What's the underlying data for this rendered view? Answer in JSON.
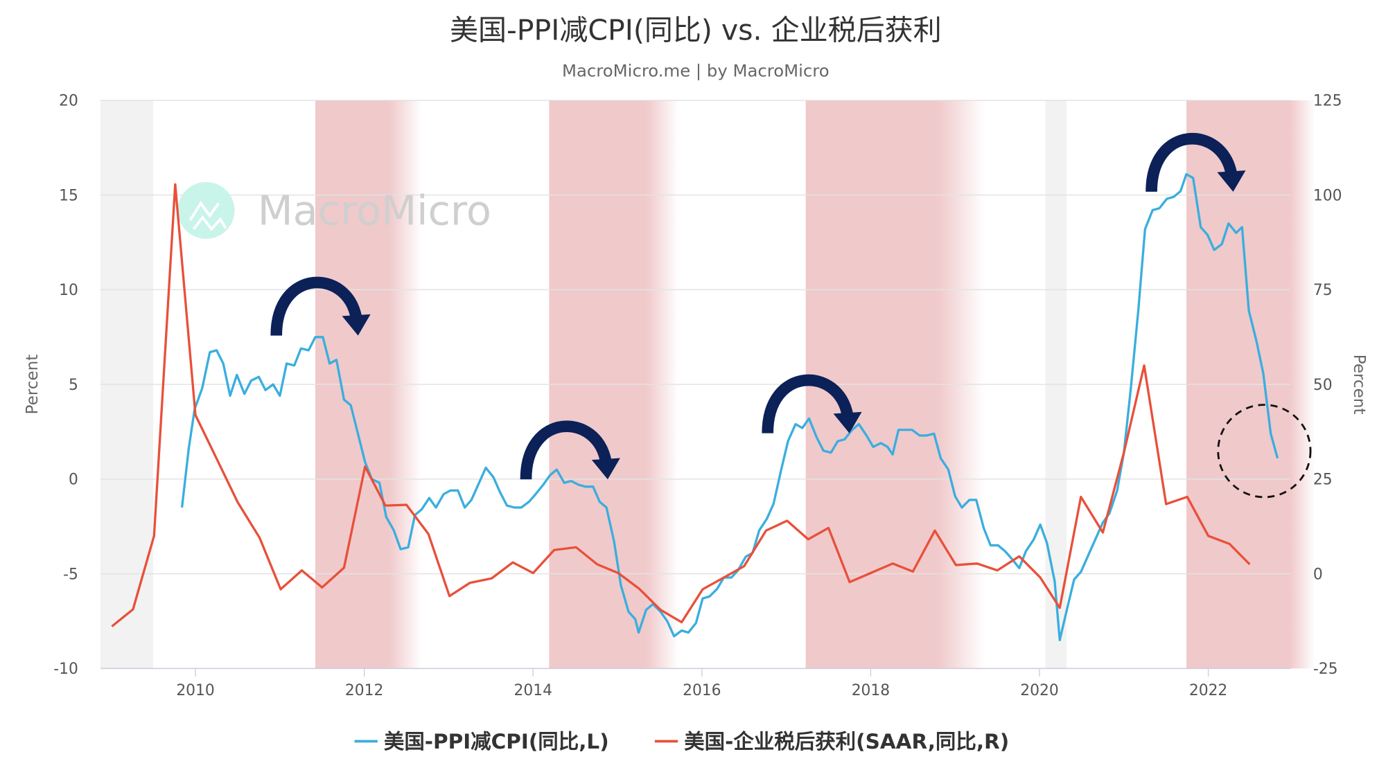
{
  "chart_data": {
    "type": "line",
    "title": "美国-PPI减CPI(同比) vs. 企业税后获利",
    "subtitle": "MacroMicro.me | by MacroMicro",
    "watermark": "MacroMicro",
    "xlim": [
      2008.87,
      2022.97
    ],
    "x_ticks": [
      "2010",
      "2012",
      "2014",
      "2016",
      "2018",
      "2020",
      "2022"
    ],
    "y_left": {
      "label": "Percent",
      "ylim": [
        -10,
        20
      ],
      "ticks": [
        "-10",
        "-5",
        "0",
        "5",
        "10",
        "15",
        "20"
      ]
    },
    "y_right": {
      "label": "Percent",
      "ylim": [
        -25,
        125
      ],
      "ticks": [
        "-25",
        "0",
        "25",
        "50",
        "75",
        "100",
        "125"
      ]
    },
    "grid": true,
    "legend_position": "bottom",
    "colors": {
      "ppi_cpi": "#3aaede",
      "profits": "#e8503a",
      "shade_pink": "#f0c9cb",
      "shade_gray": "#f2f2f2",
      "arrow": "#0b2158"
    },
    "shaded_bands": [
      {
        "type": "gray",
        "from": 2008.87,
        "to": 2009.5
      },
      {
        "type": "pink",
        "from": 2011.42,
        "solid_to": 2012.3,
        "to": 2012.68
      },
      {
        "type": "pink",
        "from": 2014.19,
        "solid_to": 2015.35,
        "to": 2015.72
      },
      {
        "type": "pink",
        "from": 2017.23,
        "solid_to": 2018.8,
        "to": 2019.35
      },
      {
        "type": "gray",
        "from": 2020.07,
        "to": 2020.32
      },
      {
        "type": "pink",
        "from": 2021.74,
        "solid_to": 2022.97,
        "to": 2022.97
      }
    ],
    "series": [
      {
        "name": "美国-PPI减CPI(同比,L)",
        "axis": "left",
        "points": [
          [
            2009.84,
            -1.5
          ],
          [
            2009.92,
            1.6
          ],
          [
            2009.99,
            3.7
          ],
          [
            2010.08,
            4.8
          ],
          [
            2010.17,
            6.7
          ],
          [
            2010.25,
            6.8
          ],
          [
            2010.33,
            6.1
          ],
          [
            2010.41,
            4.4
          ],
          [
            2010.49,
            5.5
          ],
          [
            2010.58,
            4.5
          ],
          [
            2010.66,
            5.2
          ],
          [
            2010.75,
            5.4
          ],
          [
            2010.83,
            4.7
          ],
          [
            2010.92,
            5.0
          ],
          [
            2011.0,
            4.4
          ],
          [
            2011.08,
            6.1
          ],
          [
            2011.17,
            6.0
          ],
          [
            2011.25,
            6.9
          ],
          [
            2011.34,
            6.8
          ],
          [
            2011.42,
            7.5
          ],
          [
            2011.51,
            7.5
          ],
          [
            2011.59,
            6.1
          ],
          [
            2011.67,
            6.3
          ],
          [
            2011.76,
            4.2
          ],
          [
            2011.84,
            3.9
          ],
          [
            2011.93,
            2.3
          ],
          [
            2012.01,
            0.9
          ],
          [
            2012.09,
            0.0
          ],
          [
            2012.18,
            -0.2
          ],
          [
            2012.26,
            -2.0
          ],
          [
            2012.35,
            -2.7
          ],
          [
            2012.43,
            -3.7
          ],
          [
            2012.52,
            -3.6
          ],
          [
            2012.6,
            -1.9
          ],
          [
            2012.68,
            -1.6
          ],
          [
            2012.77,
            -1.0
          ],
          [
            2012.85,
            -1.5
          ],
          [
            2012.94,
            -0.8
          ],
          [
            2013.02,
            -0.6
          ],
          [
            2013.11,
            -0.6
          ],
          [
            2013.19,
            -1.5
          ],
          [
            2013.27,
            -1.1
          ],
          [
            2013.36,
            -0.2
          ],
          [
            2013.44,
            0.6
          ],
          [
            2013.53,
            0.1
          ],
          [
            2013.61,
            -0.7
          ],
          [
            2013.69,
            -1.4
          ],
          [
            2013.78,
            -1.5
          ],
          [
            2013.86,
            -1.5
          ],
          [
            2013.95,
            -1.2
          ],
          [
            2014.03,
            -0.8
          ],
          [
            2014.12,
            -0.3
          ],
          [
            2014.2,
            0.2
          ],
          [
            2014.28,
            0.5
          ],
          [
            2014.37,
            -0.2
          ],
          [
            2014.45,
            -0.1
          ],
          [
            2014.54,
            -0.3
          ],
          [
            2014.62,
            -0.4
          ],
          [
            2014.71,
            -0.4
          ],
          [
            2014.79,
            -1.2
          ],
          [
            2014.87,
            -1.5
          ],
          [
            2014.96,
            -3.3
          ],
          [
            2015.04,
            -5.6
          ],
          [
            2015.13,
            -7.0
          ],
          [
            2015.21,
            -7.4
          ],
          [
            2015.25,
            -8.1
          ],
          [
            2015.34,
            -6.9
          ],
          [
            2015.42,
            -6.6
          ],
          [
            2015.51,
            -7.0
          ],
          [
            2015.59,
            -7.5
          ],
          [
            2015.67,
            -8.3
          ],
          [
            2015.76,
            -8.0
          ],
          [
            2015.84,
            -8.1
          ],
          [
            2015.93,
            -7.6
          ],
          [
            2016.01,
            -6.3
          ],
          [
            2016.09,
            -6.2
          ],
          [
            2016.18,
            -5.8
          ],
          [
            2016.26,
            -5.2
          ],
          [
            2016.35,
            -5.2
          ],
          [
            2016.43,
            -4.8
          ],
          [
            2016.52,
            -4.1
          ],
          [
            2016.6,
            -3.9
          ],
          [
            2016.68,
            -2.7
          ],
          [
            2016.77,
            -2.1
          ],
          [
            2016.85,
            -1.3
          ],
          [
            2016.94,
            0.5
          ],
          [
            2017.02,
            2.0
          ],
          [
            2017.11,
            2.9
          ],
          [
            2017.19,
            2.7
          ],
          [
            2017.27,
            3.2
          ],
          [
            2017.36,
            2.2
          ],
          [
            2017.44,
            1.5
          ],
          [
            2017.53,
            1.4
          ],
          [
            2017.61,
            2.0
          ],
          [
            2017.69,
            2.1
          ],
          [
            2017.78,
            2.6
          ],
          [
            2017.86,
            2.9
          ],
          [
            2017.95,
            2.3
          ],
          [
            2018.03,
            1.7
          ],
          [
            2018.12,
            1.9
          ],
          [
            2018.2,
            1.7
          ],
          [
            2018.26,
            1.3
          ],
          [
            2018.33,
            2.6
          ],
          [
            2018.41,
            2.6
          ],
          [
            2018.49,
            2.6
          ],
          [
            2018.58,
            2.3
          ],
          [
            2018.66,
            2.3
          ],
          [
            2018.75,
            2.4
          ],
          [
            2018.83,
            1.1
          ],
          [
            2018.92,
            0.5
          ],
          [
            2019.0,
            -0.9
          ],
          [
            2019.08,
            -1.5
          ],
          [
            2019.17,
            -1.1
          ],
          [
            2019.25,
            -1.1
          ],
          [
            2019.34,
            -2.6
          ],
          [
            2019.42,
            -3.5
          ],
          [
            2019.51,
            -3.5
          ],
          [
            2019.59,
            -3.8
          ],
          [
            2019.67,
            -4.2
          ],
          [
            2019.76,
            -4.7
          ],
          [
            2019.84,
            -3.8
          ],
          [
            2019.93,
            -3.2
          ],
          [
            2020.01,
            -2.4
          ],
          [
            2020.09,
            -3.4
          ],
          [
            2020.18,
            -5.4
          ],
          [
            2020.24,
            -8.5
          ],
          [
            2020.33,
            -6.8
          ],
          [
            2020.41,
            -5.3
          ],
          [
            2020.49,
            -4.9
          ],
          [
            2020.58,
            -4.0
          ],
          [
            2020.66,
            -3.2
          ],
          [
            2020.75,
            -2.3
          ],
          [
            2020.83,
            -1.8
          ],
          [
            2020.92,
            -0.6
          ],
          [
            2021.0,
            1.4
          ],
          [
            2021.08,
            4.7
          ],
          [
            2021.17,
            8.9
          ],
          [
            2021.25,
            13.2
          ],
          [
            2021.34,
            14.2
          ],
          [
            2021.42,
            14.3
          ],
          [
            2021.51,
            14.8
          ],
          [
            2021.59,
            14.9
          ],
          [
            2021.67,
            15.2
          ],
          [
            2021.74,
            16.1
          ],
          [
            2021.82,
            15.9
          ],
          [
            2021.91,
            13.3
          ],
          [
            2021.99,
            12.9
          ],
          [
            2022.07,
            12.1
          ],
          [
            2022.16,
            12.4
          ],
          [
            2022.24,
            13.5
          ],
          [
            2022.33,
            13.0
          ],
          [
            2022.4,
            13.3
          ],
          [
            2022.48,
            8.9
          ],
          [
            2022.57,
            7.3
          ],
          [
            2022.65,
            5.6
          ],
          [
            2022.74,
            2.4
          ],
          [
            2022.82,
            1.1
          ]
        ]
      },
      {
        "name": "美国-企业税后获利(SAAR,同比,R)",
        "axis": "right",
        "points": [
          [
            2009.01,
            -13.9
          ],
          [
            2009.26,
            -9.4
          ],
          [
            2009.51,
            10.0
          ],
          [
            2009.76,
            102.8
          ],
          [
            2010.0,
            41.9
          ],
          [
            2010.25,
            30.4
          ],
          [
            2010.5,
            18.9
          ],
          [
            2010.76,
            9.5
          ],
          [
            2011.01,
            -4.1
          ],
          [
            2011.26,
            0.9
          ],
          [
            2011.5,
            -3.6
          ],
          [
            2011.76,
            1.6
          ],
          [
            2012.01,
            28.3
          ],
          [
            2012.25,
            18.0
          ],
          [
            2012.5,
            18.2
          ],
          [
            2012.76,
            10.5
          ],
          [
            2013.01,
            -5.9
          ],
          [
            2013.25,
            -2.4
          ],
          [
            2013.51,
            -1.2
          ],
          [
            2013.76,
            3.0
          ],
          [
            2014.0,
            0.2
          ],
          [
            2014.25,
            6.3
          ],
          [
            2014.51,
            7.0
          ],
          [
            2014.76,
            2.5
          ],
          [
            2015.01,
            0.2
          ],
          [
            2015.26,
            -4.0
          ],
          [
            2015.51,
            -9.5
          ],
          [
            2015.76,
            -12.8
          ],
          [
            2016.01,
            -4.1
          ],
          [
            2016.26,
            -1.0
          ],
          [
            2016.5,
            2.0
          ],
          [
            2016.76,
            11.4
          ],
          [
            2017.01,
            14.0
          ],
          [
            2017.26,
            9.1
          ],
          [
            2017.5,
            12.1
          ],
          [
            2017.75,
            -2.2
          ],
          [
            2018.0,
            0.2
          ],
          [
            2018.26,
            2.7
          ],
          [
            2018.5,
            0.6
          ],
          [
            2018.76,
            11.4
          ],
          [
            2019.01,
            2.3
          ],
          [
            2019.26,
            2.7
          ],
          [
            2019.5,
            0.9
          ],
          [
            2019.76,
            4.6
          ],
          [
            2020.01,
            -1.0
          ],
          [
            2020.24,
            -9.0
          ],
          [
            2020.49,
            20.3
          ],
          [
            2020.75,
            10.9
          ],
          [
            2021.0,
            32.0
          ],
          [
            2021.24,
            55.0
          ],
          [
            2021.5,
            18.4
          ],
          [
            2021.75,
            20.3
          ],
          [
            2022.0,
            10.0
          ],
          [
            2022.25,
            7.9
          ],
          [
            2022.49,
            2.5
          ]
        ]
      }
    ]
  }
}
